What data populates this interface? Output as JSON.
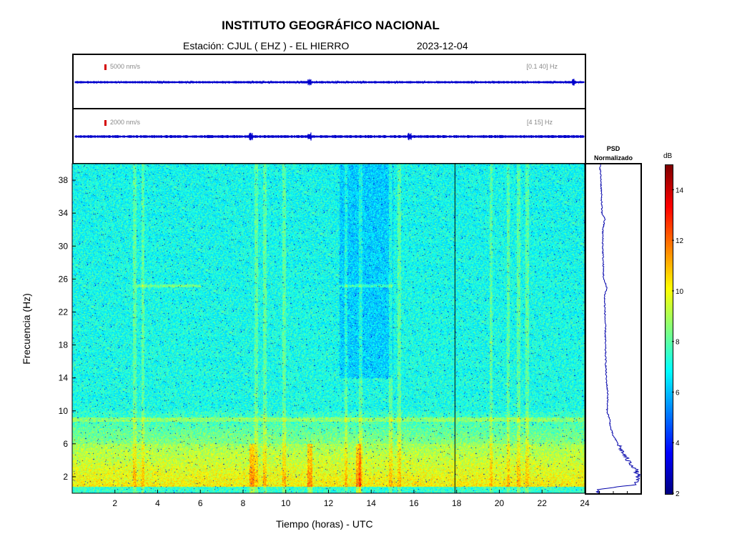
{
  "header": {
    "title": "INSTITUTO GEOGRÁFICO NACIONAL",
    "station": "Estación:  CJUL ( EHZ ) - EL HIERRO",
    "date": "2023-12-04"
  },
  "waveform_panels": [
    {
      "scale": "5000 nm/s",
      "band": "[0.1 40]  Hz"
    },
    {
      "scale": "2000 nm/s",
      "band": "[4 15]  Hz"
    }
  ],
  "psd": {
    "title_line1": "PSD",
    "title_line2": "Normalizado"
  },
  "colorbar": {
    "unit": "dB",
    "ticks": [
      2,
      4,
      6,
      8,
      10,
      12,
      14
    ],
    "range": [
      2,
      15
    ]
  },
  "colors": {
    "waveform": "#0000cc",
    "scale_bar": "#d40000",
    "psd_line": "#0000aa"
  },
  "chart_data": {
    "type": "heatmap",
    "title": "INSTITUTO GEOGRÁFICO NACIONAL",
    "xlabel": "Tiempo (horas) - UTC",
    "ylabel": "Frecuencia  (Hz)",
    "xlim": [
      0,
      24
    ],
    "ylim": [
      0,
      40
    ],
    "x_ticks": [
      2,
      4,
      6,
      8,
      10,
      12,
      14,
      16,
      18,
      20,
      22,
      24
    ],
    "y_ticks": [
      2,
      6,
      10,
      14,
      18,
      22,
      26,
      30,
      34,
      38
    ],
    "colorscale": "jet",
    "marker_time": 17.9,
    "tremor_bursts_hours": [
      8.4,
      11.1,
      13.4
    ],
    "psd_profile": {
      "freq": [
        0.5,
        1,
        2,
        3,
        4,
        5,
        6,
        7,
        8,
        9,
        10,
        12,
        14,
        16,
        18,
        20,
        22,
        24,
        25,
        26,
        28,
        30,
        32,
        33.5,
        34,
        36,
        38,
        39.5
      ],
      "value": [
        0.02,
        0.85,
        0.95,
        0.88,
        0.7,
        0.58,
        0.48,
        0.36,
        0.3,
        0.28,
        0.22,
        0.24,
        0.2,
        0.19,
        0.18,
        0.18,
        0.17,
        0.16,
        0.22,
        0.14,
        0.13,
        0.12,
        0.12,
        0.17,
        0.1,
        0.09,
        0.08,
        0.06
      ]
    }
  }
}
